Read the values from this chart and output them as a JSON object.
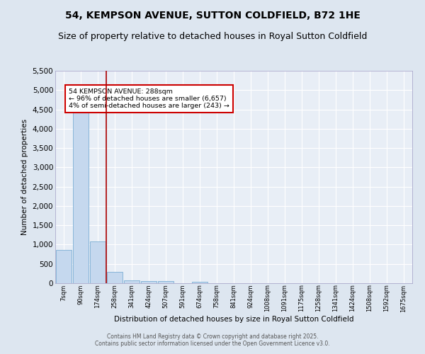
{
  "title": "54, KEMPSON AVENUE, SUTTON COLDFIELD, B72 1HE",
  "subtitle": "Size of property relative to detached houses in Royal Sutton Coldfield",
  "xlabel": "Distribution of detached houses by size in Royal Sutton Coldfield",
  "ylabel": "Number of detached properties",
  "categories": [
    "7sqm",
    "90sqm",
    "174sqm",
    "258sqm",
    "341sqm",
    "424sqm",
    "507sqm",
    "591sqm",
    "674sqm",
    "758sqm",
    "841sqm",
    "924sqm",
    "1008sqm",
    "1091sqm",
    "1175sqm",
    "1258sqm",
    "1341sqm",
    "1424sqm",
    "1508sqm",
    "1592sqm",
    "1675sqm"
  ],
  "values": [
    870,
    4580,
    1080,
    285,
    80,
    60,
    50,
    0,
    30,
    0,
    0,
    0,
    0,
    0,
    0,
    0,
    0,
    0,
    0,
    0,
    0
  ],
  "bar_color": "#c5d8ee",
  "bar_edge_color": "#7baed4",
  "vline_x_index": 2.5,
  "vline_color": "#aa0000",
  "annotation_text": "54 KEMPSON AVENUE: 288sqm\n← 96% of detached houses are smaller (6,657)\n4% of semi-detached houses are larger (243) →",
  "annotation_box_color": "#cc0000",
  "annotation_text_color": "#000000",
  "ylim": [
    0,
    5500
  ],
  "yticks": [
    0,
    500,
    1000,
    1500,
    2000,
    2500,
    3000,
    3500,
    4000,
    4500,
    5000,
    5500
  ],
  "bg_color": "#dde6f0",
  "plot_bg_color": "#e8eef6",
  "grid_color": "#ffffff",
  "title_fontsize": 10,
  "subtitle_fontsize": 9,
  "footer_text": "Contains HM Land Registry data © Crown copyright and database right 2025.\nContains public sector information licensed under the Open Government Licence v3.0."
}
